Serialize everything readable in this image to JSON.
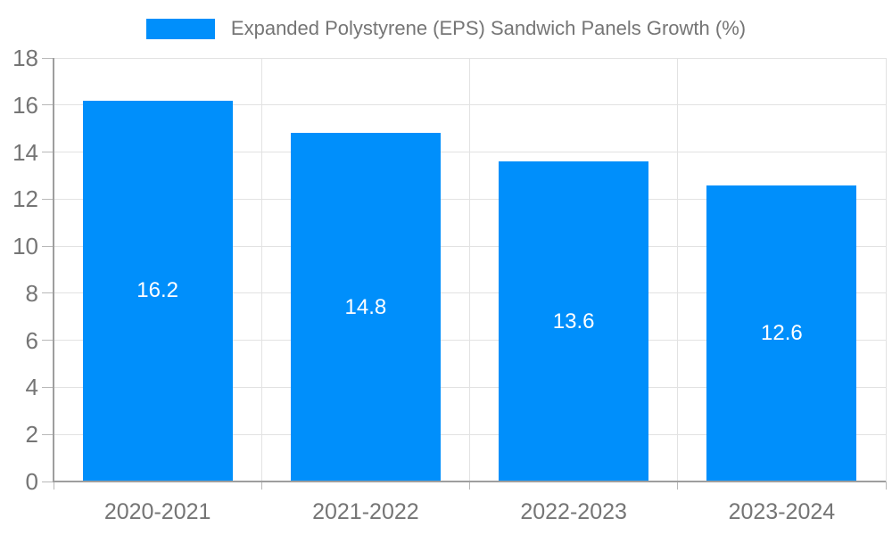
{
  "chart_data": {
    "type": "bar",
    "categories": [
      "2020-2021",
      "2021-2022",
      "2022-2023",
      "2023-2024"
    ],
    "values": [
      16.2,
      14.8,
      13.6,
      12.6
    ],
    "value_labels": [
      "16.2",
      "14.8",
      "13.6",
      "12.6"
    ],
    "legend": [
      "Expanded Polystyrene (EPS) Sandwich Panels Growth (%)"
    ],
    "legend_position": "top-center",
    "title": "",
    "xlabel": "",
    "ylabel": "",
    "ylim": [
      0,
      18
    ],
    "yticks": [
      0,
      2,
      4,
      6,
      8,
      10,
      12,
      14,
      16,
      18
    ],
    "grid": true,
    "colors": {
      "bar": "#008FFB",
      "grid": "#e2e2e2",
      "axis": "#9e9e9e",
      "tick": "#b8b8b8",
      "text": "#757575",
      "value_text": "#ffffff",
      "background": "#ffffff"
    }
  }
}
